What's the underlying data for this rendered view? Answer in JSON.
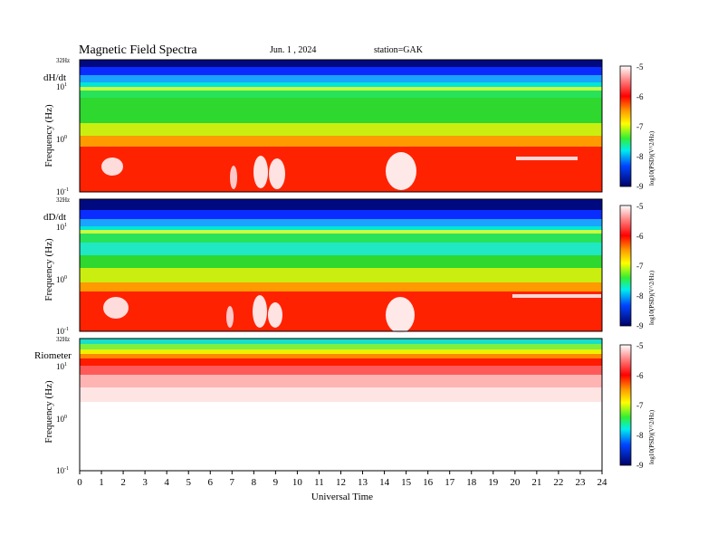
{
  "header": {
    "title": "Magnetic  Field  Spectra",
    "date": "Jun.  1  , 2024",
    "station": "station=GAK"
  },
  "chart_data": [
    {
      "type": "heatmap",
      "panel_label": "dH/dt",
      "top_label": "32Hz",
      "ylabel": "Frequency  (Hz)",
      "y_scale": "log",
      "y_ticks": [
        {
          "base": "10",
          "exp": "1"
        },
        {
          "base": "10",
          "exp": "0"
        },
        {
          "base": "10",
          "exp": "-1"
        }
      ],
      "xlim": [
        0,
        24
      ],
      "colorbar": {
        "label": "log10(PSD)(V^2/Hz)",
        "ticks": [
          "-5",
          "-6",
          "-7",
          "-8",
          "-9"
        ],
        "range": [
          -9,
          -5
        ]
      },
      "bands_log10_psd": [
        {
          "freq": "top",
          "value": -8.8
        },
        {
          "freq": "upper",
          "value": -8.0
        },
        {
          "freq": "mid-high",
          "value": -7.3
        },
        {
          "freq": "mid",
          "value": -6.9
        },
        {
          "freq": "low",
          "value": -6.2
        },
        {
          "freq": "lowest",
          "value": -5.8
        }
      ]
    },
    {
      "type": "heatmap",
      "panel_label": "dD/dt",
      "top_label": "32Hz",
      "ylabel": "Frequency  (Hz)",
      "y_scale": "log",
      "y_ticks": [
        {
          "base": "10",
          "exp": "1"
        },
        {
          "base": "10",
          "exp": "0"
        },
        {
          "base": "10",
          "exp": "-1"
        }
      ],
      "xlim": [
        0,
        24
      ],
      "colorbar": {
        "label": "log10(PSD)(V^2/Hz)",
        "ticks": [
          "-5",
          "-6",
          "-7",
          "-8",
          "-9"
        ],
        "range": [
          -9,
          -5
        ]
      },
      "bands_log10_psd": [
        {
          "freq": "top",
          "value": -8.8
        },
        {
          "freq": "upper",
          "value": -7.9
        },
        {
          "freq": "mid-high",
          "value": -7.4
        },
        {
          "freq": "mid",
          "value": -7.0
        },
        {
          "freq": "low",
          "value": -6.3
        },
        {
          "freq": "lowest",
          "value": -5.8
        }
      ]
    },
    {
      "type": "heatmap",
      "panel_label": "Riometer",
      "top_label": "32Hz",
      "ylabel": "Frequency  (Hz)",
      "y_scale": "log",
      "y_ticks": [
        {
          "base": "10",
          "exp": "1"
        },
        {
          "base": "10",
          "exp": "0"
        },
        {
          "base": "10",
          "exp": "-1"
        }
      ],
      "xlim": [
        0,
        24
      ],
      "colorbar": {
        "label": "log10(PSD)(V^2/Hz)",
        "ticks": [
          "-5",
          "-6",
          "-7",
          "-8",
          "-9"
        ],
        "range": [
          -9,
          -5
        ]
      },
      "bands_log10_psd": [
        {
          "freq": "top",
          "value": -7.2
        },
        {
          "freq": "upper",
          "value": -6.4
        },
        {
          "freq": "mid-high",
          "value": -5.6
        },
        {
          "freq": "mid",
          "value": -5.0
        },
        {
          "freq": "low",
          "value": -5.0
        },
        {
          "freq": "lowest",
          "value": -5.0
        }
      ]
    }
  ],
  "xaxis": {
    "label": "Universal Time",
    "ticks": [
      "0",
      "1",
      "2",
      "3",
      "4",
      "5",
      "6",
      "7",
      "8",
      "9",
      "10",
      "11",
      "12",
      "13",
      "14",
      "15",
      "16",
      "17",
      "18",
      "19",
      "20",
      "21",
      "22",
      "23",
      "24"
    ]
  }
}
